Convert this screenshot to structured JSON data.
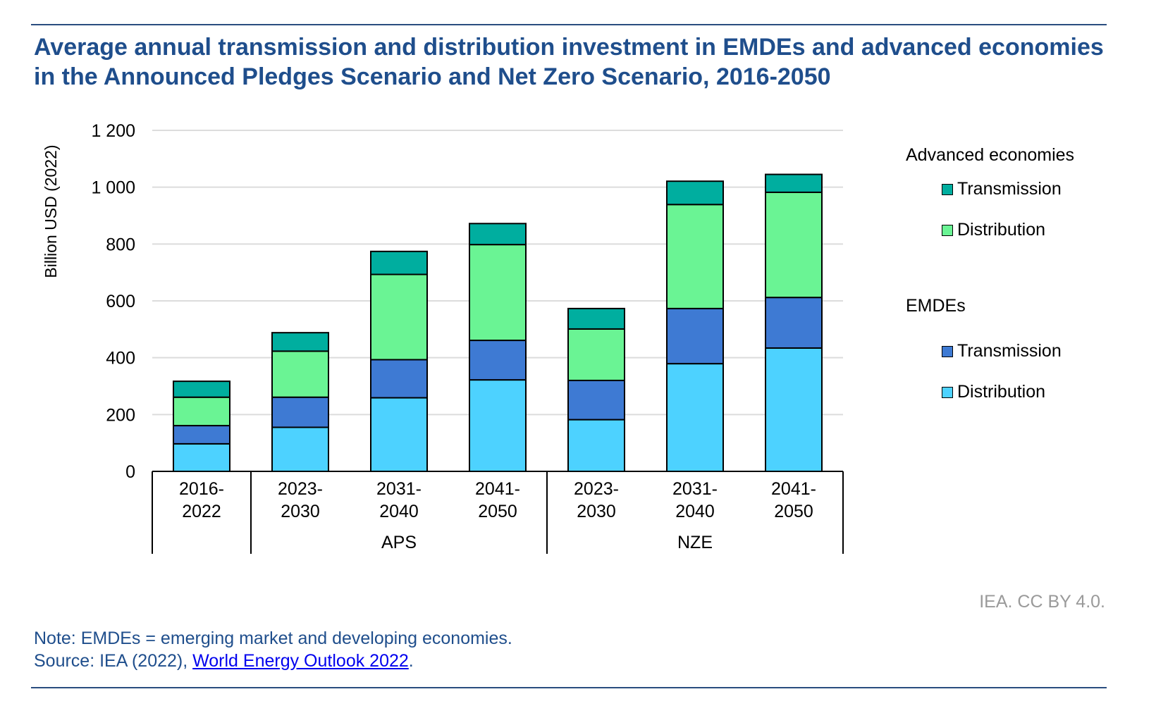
{
  "title": "Average annual transmission and distribution investment in EMDEs and advanced economies in the Announced Pledges Scenario and Net Zero Scenario, 2016-2050",
  "credit": "IEA. CC BY 4.0.",
  "note": "Note: EMDEs = emerging market and developing economies.",
  "source_prefix": "Source: IEA (2022), ",
  "source_link": "World Energy Outlook 2022",
  "source_suffix": ".",
  "legend": {
    "group1": "Advanced economies",
    "group1_items": [
      "Transmission",
      "Distribution"
    ],
    "group2": "EMDEs",
    "group2_items": [
      "Transmission",
      "Distribution"
    ]
  },
  "chart_data": {
    "type": "bar",
    "stacked": true,
    "title": "Average annual transmission and distribution investment in EMDEs and advanced economies in the Announced Pledges Scenario and Net Zero Scenario, 2016-2050",
    "ylabel": "Billion USD (2022)",
    "xlabel": "",
    "ylim": [
      0,
      1200
    ],
    "yticks": [
      0,
      200,
      400,
      600,
      800,
      1000,
      1200
    ],
    "ytick_labels": [
      "0",
      "200",
      "400",
      "600",
      "800",
      "1 000",
      "1 200"
    ],
    "grid": true,
    "legend_position": "right",
    "categories": [
      [
        "2016-",
        "2022"
      ],
      [
        "2023-",
        "2030"
      ],
      [
        "2031-",
        "2040"
      ],
      [
        "2041-",
        "2050"
      ],
      [
        "2023-",
        "2030"
      ],
      [
        "2031-",
        "2040"
      ],
      [
        "2041-",
        "2050"
      ]
    ],
    "groups": [
      {
        "label": "",
        "span": 1
      },
      {
        "label": "APS",
        "span": 3
      },
      {
        "label": "NZE",
        "span": 3
      }
    ],
    "series": [
      {
        "name": "EMDEs Distribution",
        "color": "#4dd2ff",
        "values": [
          97,
          155,
          259,
          322,
          182,
          379,
          434
        ]
      },
      {
        "name": "EMDEs Transmission",
        "color": "#3e7ad3",
        "values": [
          64,
          106,
          134,
          139,
          138,
          194,
          178
        ]
      },
      {
        "name": "Advanced economies Distribution",
        "color": "#6af494",
        "values": [
          100,
          162,
          300,
          337,
          181,
          366,
          370
        ]
      },
      {
        "name": "Advanced economies Transmission",
        "color": "#00ae9f",
        "values": [
          56,
          65,
          81,
          74,
          72,
          82,
          63
        ]
      }
    ]
  }
}
